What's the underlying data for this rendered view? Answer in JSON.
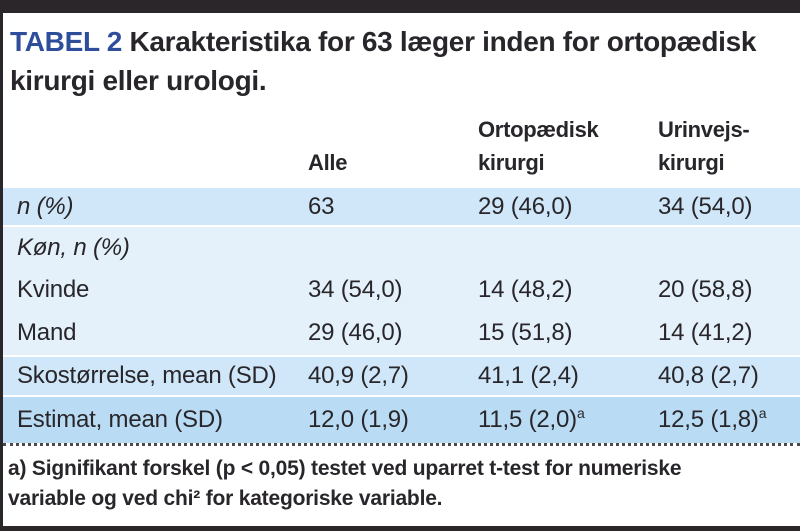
{
  "theme": {
    "accent_blue": "#2e4d9b",
    "row_light": "#e4f1fb",
    "row_medium": "#cfe7f8",
    "row_dark": "#b9dcf4",
    "bar_dark": "#2a2629",
    "text_dark": "#28262a"
  },
  "title": {
    "tag": "TABEL 2",
    "text": "Karakteristika for 63 læger inden for ortopædisk\nkirurgi eller urologi."
  },
  "table": {
    "headers": [
      "",
      "Alle",
      "Ortopædisk\nkirurgi",
      "Urinvejs-\nkirurgi"
    ],
    "rows": [
      {
        "label": "n (%)",
        "italic": true,
        "shade": "medium",
        "sep": true,
        "values": [
          {
            "text": "63"
          },
          {
            "text": "29 (46,0)"
          },
          {
            "text": "34 (54,0)"
          }
        ]
      },
      {
        "label": "Køn, n (%)",
        "italic": true,
        "shade": "light",
        "sep": true,
        "values": [
          {
            "text": ""
          },
          {
            "text": ""
          },
          {
            "text": ""
          }
        ]
      },
      {
        "label": "Kvinde",
        "italic": false,
        "shade": "light",
        "sep": false,
        "values": [
          {
            "text": "34 (54,0)"
          },
          {
            "text": "14 (48,2)"
          },
          {
            "text": "20 (58,8)"
          }
        ]
      },
      {
        "label": "Mand",
        "italic": false,
        "shade": "light",
        "sep": false,
        "values": [
          {
            "text": "29 (46,0)"
          },
          {
            "text": "15 (51,8)"
          },
          {
            "text": "14 (41,2)"
          }
        ]
      },
      {
        "label": "Skostørrelse, mean (SD)",
        "italic": false,
        "shade": "medium",
        "sep": true,
        "values": [
          {
            "text": "40,9 (2,7)"
          },
          {
            "text": "41,1 (2,4)"
          },
          {
            "text": "40,8 (2,7)"
          }
        ]
      },
      {
        "label": "Estimat, mean (SD)",
        "italic": false,
        "shade": "dark",
        "sep": true,
        "values": [
          {
            "text": "12,0 (1,9)"
          },
          {
            "text": "11,5 (2,0)",
            "sup": "a"
          },
          {
            "text": "12,5 (1,8)",
            "sup": "a"
          }
        ]
      }
    ]
  },
  "footnote": "a) Signifikant forskel (p < 0,05) testet ved uparret t-test for numeriske\nvariable og ved chi² for kategoriske variable."
}
